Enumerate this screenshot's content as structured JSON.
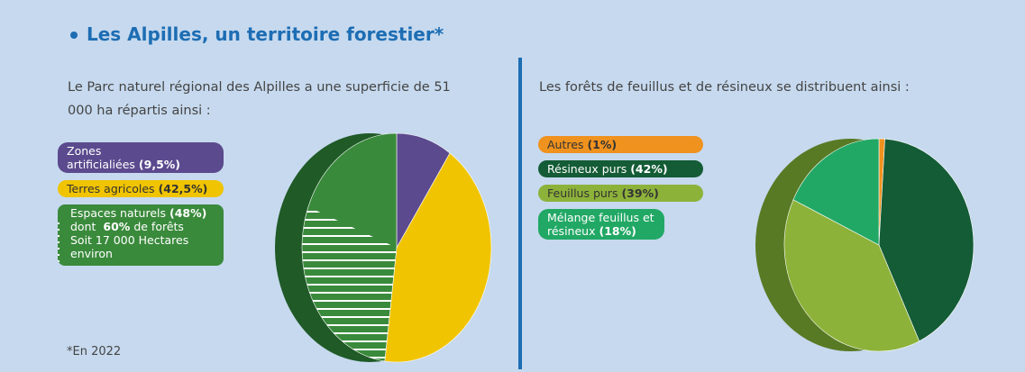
{
  "title": "Les Alpilles, un territoire forestier*",
  "footnote": "*En 2022",
  "chart_data": [
    {
      "type": "pie",
      "intro": "Le Parc naturel régional des Alpilles a une superficie de 51 000 ha répartis ainsi :",
      "categories": [
        "Zones artificialiées",
        "Terres agricoles",
        "Espaces naturels"
      ],
      "values": [
        9.5,
        42.5,
        48
      ],
      "value_labels": [
        "(9,5%)",
        "(42,5%)",
        "(48%)"
      ],
      "colors": [
        "#5b4a8e",
        "#f0c400",
        "#3a8a3c"
      ],
      "annotation": {
        "category": 2,
        "text_before": "dont",
        "value": 60,
        "value_label": "60%",
        "text_after": "de forêts",
        "lines": [
          "Soit 17 000 Hectares",
          "environ"
        ]
      }
    },
    {
      "type": "pie",
      "intro": "Les forêts de feuillus et de résineux se distribuent ainsi :",
      "categories": [
        "Autres",
        "Résineux purs",
        "Feuillus purs",
        "Mélange feuillus et résineux"
      ],
      "values": [
        1,
        42,
        39,
        18
      ],
      "value_labels": [
        "(1%)",
        "(42%)",
        "(39%)",
        "(18%)"
      ],
      "colors": [
        "#f0921e",
        "#145c36",
        "#8db23a",
        "#22a865"
      ]
    }
  ]
}
